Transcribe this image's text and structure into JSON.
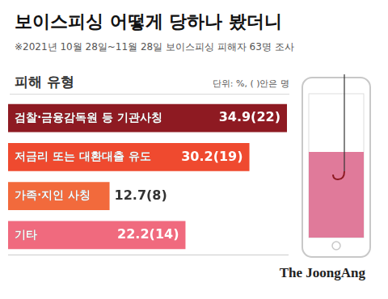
{
  "chart_data": {
    "type": "bar",
    "orientation": "horizontal",
    "title": "보이스피싱 어떻게 당하나 봤더니",
    "subtitle": "※2021년 10월 28일~11월 28일 보이스피싱 피해자 63명 조사",
    "annotations": {
      "section": "피해 유형",
      "unit": "단위: %, ( )안은 명",
      "source": "The JoongAng"
    },
    "categories": [
      "검찰·금융감독원 등 기관사칭",
      "저금리 또는 대환대출 유도",
      "가족·지인 사칭",
      "기타"
    ],
    "values": [
      34.9,
      30.2,
      12.7,
      22.2
    ],
    "value_labels": [
      "34.9(22)",
      "30.2(19)",
      "12.7(8)",
      "22.2(14)"
    ],
    "colors": [
      "#8e1a22",
      "#ef4a2f",
      "#f26a3c",
      "#f06a7e"
    ],
    "xlim": [
      0,
      35
    ],
    "grid": false,
    "tick_labels": false,
    "data_labels": true
  }
}
